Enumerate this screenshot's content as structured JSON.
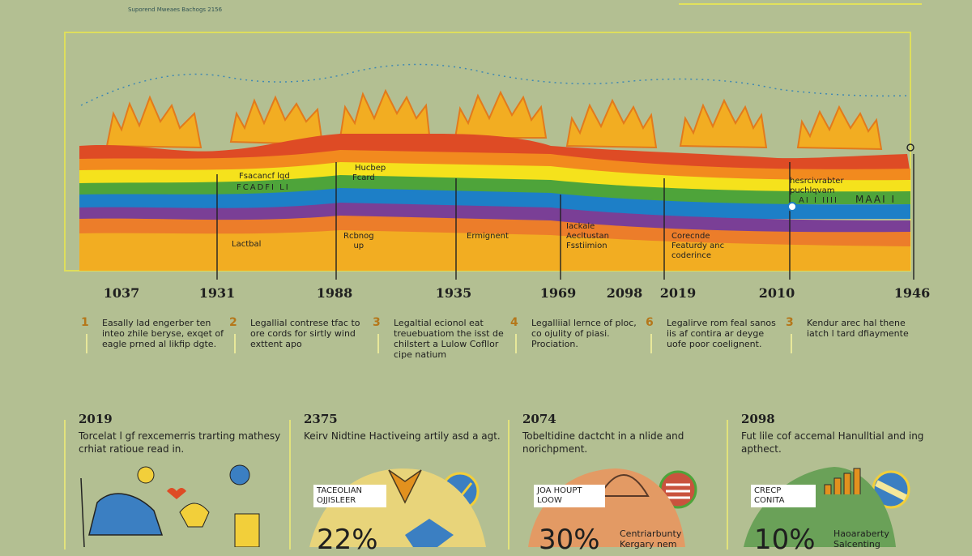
{
  "caption": "Suporend Mweaes Bachogs 2156",
  "timeline": {
    "band_labels": [
      {
        "id": "a",
        "lines": [
          "Fsacancf lqd"
        ]
      },
      {
        "id": "b",
        "lines": [
          "FCADFI LI"
        ]
      },
      {
        "id": "c",
        "lines": [
          "Hucbep"
        ]
      },
      {
        "id": "d",
        "lines": [
          "Fcard"
        ]
      },
      {
        "id": "e",
        "lines": [
          "Lactbal"
        ]
      },
      {
        "id": "f",
        "lines": [
          "Rcbnog",
          "up"
        ]
      },
      {
        "id": "g",
        "lines": [
          "Ermignent"
        ]
      },
      {
        "id": "h",
        "lines": [
          "Iackale",
          "Aecltustan",
          "Fsstiimion"
        ]
      },
      {
        "id": "i",
        "lines": [
          "Corecnde",
          "Featurdy anc",
          "coderince"
        ]
      },
      {
        "id": "j",
        "lines": [
          "hesrcivrabter",
          "puchlqvam"
        ]
      },
      {
        "id": "k",
        "lines": [
          "AI I IIII"
        ]
      },
      {
        "id": "l",
        "lines": [
          "MAAI I"
        ]
      }
    ],
    "years": [
      "1037",
      "1931",
      "1988",
      "1935",
      "1969",
      "2098",
      "2019",
      "2010",
      "1946"
    ]
  },
  "steps": [
    {
      "num": "1",
      "text": "Easally lad engerber ten inteo zhile beryse, exqet of eagle prned al likfip dgte."
    },
    {
      "num": "2",
      "text": "Legallial contrese tfac to ore cords for sirtly wind exttent apo"
    },
    {
      "num": "3",
      "text": "Legaltial ecionol eat treuebuatiom the isst de chilstert a Lulow Cofllor cipe natium"
    },
    {
      "num": "4",
      "text": "Legalliial lernce of ploc, co ojulity of piasi. Prociation."
    },
    {
      "num": "6",
      "text": "Legalirve rom feal sanos iis af contira ar deyge uofe poor coelignent."
    },
    {
      "num": "3",
      "text": "Kendur arec hal thene iatch l tard dfiaymente"
    }
  ],
  "cards": [
    {
      "year": "2019",
      "desc": "Torcelat l gf rexcemerris trarting mathesy crhiat ratioue read in.",
      "tag": "",
      "pct": "",
      "note": ""
    },
    {
      "year": "2375",
      "desc": "Keirv Nidtine Hactiveing artily asd a agt.",
      "tag": "TACEOLIAN OJJISLEER",
      "pct": "22%",
      "note": ""
    },
    {
      "year": "2074",
      "desc": "Tobeltidine dactcht in a nlide and norichpment.",
      "tag": "JOA HOUPT LOOW",
      "pct": "30%",
      "note": "Centriarbunty Kergary nem"
    },
    {
      "year": "2098",
      "desc": "Fut lile cof accemal Hanulltial and ing apthect.",
      "tag": "CRECP CONITA",
      "pct": "10%",
      "note": "Haoaraberty Salcenting"
    }
  ],
  "colors": {
    "red": "#de4b25",
    "orange": "#f28a1e",
    "yellow": "#f5e21c",
    "green": "#4ea43a",
    "blue": "#1d7fc7",
    "purple": "#7a3f96",
    "gold": "#f2ad22",
    "bg": "#b3bf92",
    "frame": "#dede5c"
  }
}
